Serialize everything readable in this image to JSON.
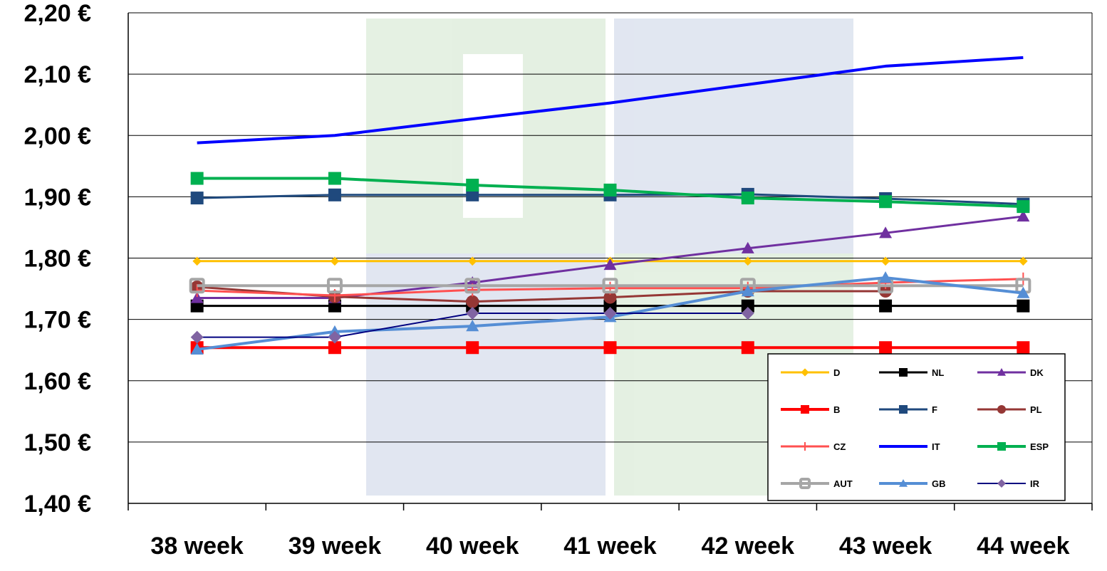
{
  "chart_data": {
    "type": "line",
    "title": "",
    "xlabel": "",
    "ylabel": "",
    "categories": [
      "38 week",
      "39 week",
      "40 week",
      "41 week",
      "42 week",
      "43 week",
      "44 week"
    ],
    "ylim": [
      1.4,
      2.2
    ],
    "yticks": [
      "1,40 €",
      "1,50 €",
      "1,60 €",
      "1,70 €",
      "1,80 €",
      "1,90 €",
      "2,00 €",
      "2,10 €",
      "2,20 €"
    ],
    "grid": true,
    "legend_placement": "bottom-right",
    "series": [
      {
        "name": "D",
        "color": "#FFC000",
        "marker": "diamond",
        "width": 3,
        "values": [
          1.795,
          1.795,
          1.795,
          1.795,
          1.795,
          1.795,
          1.795
        ]
      },
      {
        "name": "NL",
        "color": "#000000",
        "marker": "square",
        "width": 3,
        "values": [
          1.722,
          1.722,
          1.722,
          1.722,
          1.722,
          1.722,
          1.722
        ]
      },
      {
        "name": "DK",
        "color": "#7030A0",
        "marker": "triangle",
        "width": 3,
        "values": [
          1.735,
          1.735,
          1.76,
          1.789,
          1.816,
          1.841,
          1.868
        ]
      },
      {
        "name": "B",
        "color": "#FF0000",
        "marker": "square",
        "width": 4,
        "values": [
          1.654,
          1.654,
          1.654,
          1.654,
          1.654,
          1.654,
          1.654
        ]
      },
      {
        "name": "F",
        "color": "#1F497D",
        "marker": "square",
        "width": 3,
        "values": [
          1.898,
          1.903,
          1.903,
          1.903,
          1.904,
          1.897,
          1.888
        ]
      },
      {
        "name": "PL",
        "color": "#953735",
        "marker": "circle",
        "width": 3,
        "values": [
          1.753,
          1.737,
          1.729,
          1.736,
          1.746,
          1.746,
          null
        ]
      },
      {
        "name": "CZ",
        "color": "#FF5050",
        "marker": "plus",
        "width": 3,
        "values": [
          1.747,
          1.739,
          1.748,
          1.751,
          1.751,
          1.76,
          1.766
        ]
      },
      {
        "name": "IT",
        "color": "#0000FF",
        "marker": "none",
        "width": 4,
        "values": [
          1.988,
          2.0,
          2.027,
          2.053,
          2.083,
          2.113,
          2.127
        ]
      },
      {
        "name": "ESP",
        "color": "#00B050",
        "marker": "square",
        "width": 4,
        "values": [
          1.93,
          1.93,
          1.919,
          1.911,
          1.898,
          1.892,
          1.884
        ]
      },
      {
        "name": "AUT",
        "color": "#A6A6A6",
        "marker": "hollow-square",
        "width": 4,
        "values": [
          1.755,
          1.755,
          1.755,
          1.755,
          1.755,
          1.755,
          1.755
        ]
      },
      {
        "name": "GB",
        "color": "#558ED5",
        "marker": "triangle",
        "width": 4,
        "values": [
          1.651,
          1.68,
          1.689,
          1.704,
          1.746,
          1.768,
          1.743
        ]
      },
      {
        "name": "IR",
        "color": "#000080",
        "marker": "diamond-purple",
        "width": 2,
        "values": [
          1.671,
          1.671,
          1.71,
          1.71,
          1.71,
          null,
          null
        ]
      }
    ]
  }
}
